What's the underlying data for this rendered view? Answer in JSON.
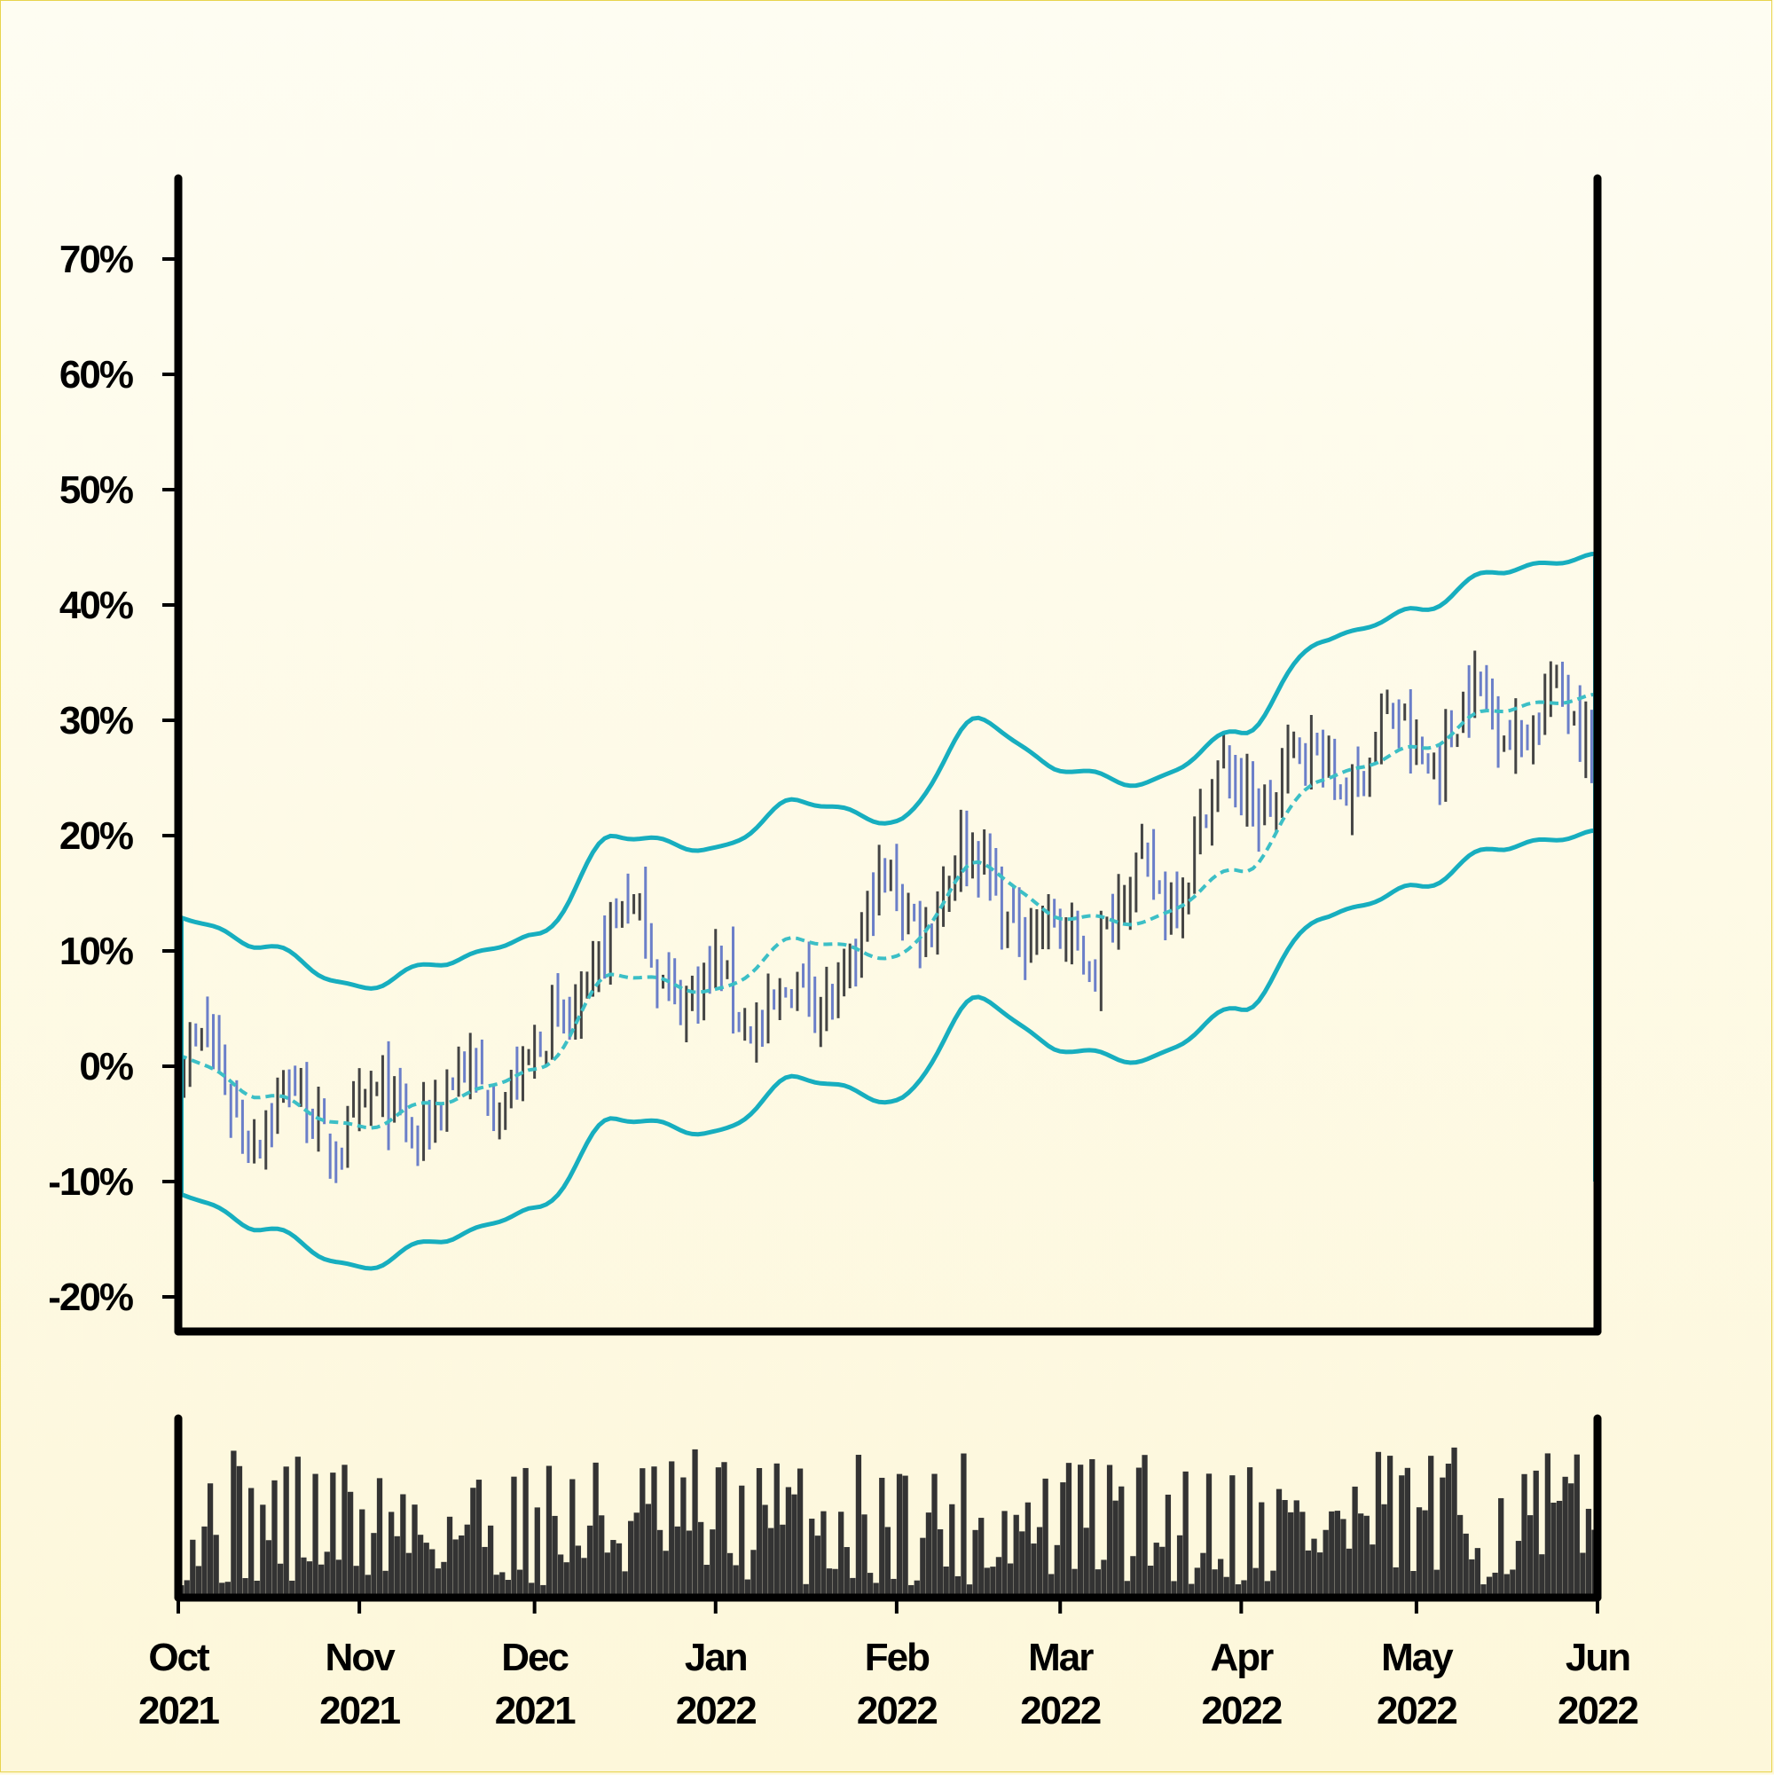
{
  "chart_data": [
    {
      "type": "ohlc",
      "title": "",
      "xlabel": "",
      "ylabel": "",
      "ylim": [
        -23,
        77
      ],
      "y_ticks": [
        -20,
        -10,
        0,
        10,
        20,
        30,
        40,
        50,
        60,
        70
      ],
      "y_tick_labels": [
        "-20%",
        "-10%",
        "0%",
        "10%",
        "20%",
        "30%",
        "40%",
        "50%",
        "60%",
        "70%"
      ],
      "x_range": [
        "2021-10-01",
        "2022-06-01"
      ],
      "up_color": "#5b6b6b",
      "down_color": "#6d7fc4",
      "bar_palette": [
        "#444444",
        "#6b7fc9"
      ],
      "series": [
        {
          "name": "",
          "kind": "price-close",
          "x": [
            "2021-10-01",
            "2021-10-15",
            "2021-11-01",
            "2021-11-15",
            "2021-12-01",
            "2021-12-15",
            "2022-01-01",
            "2022-01-15",
            "2022-02-01",
            "2022-02-15",
            "2022-03-01",
            "2022-03-15",
            "2022-04-01",
            "2022-04-15",
            "2022-05-01",
            "2022-05-15",
            "2022-06-01"
          ],
          "values": [
            1,
            -4,
            -5,
            -3,
            0,
            12,
            6,
            5,
            14,
            17,
            10,
            15,
            24,
            26,
            28,
            31,
            30
          ]
        },
        {
          "name": "",
          "kind": "moving-average",
          "x": [
            "2021-10-01",
            "2021-10-15",
            "2021-11-01",
            "2021-11-15",
            "2021-12-01",
            "2021-12-15",
            "2022-01-01",
            "2022-01-15",
            "2022-02-01",
            "2022-02-15",
            "2022-03-01",
            "2022-03-15",
            "2022-04-01",
            "2022-04-15",
            "2022-05-01",
            "2022-05-15",
            "2022-06-01"
          ],
          "values": [
            1,
            -2.5,
            -5.3,
            -3,
            -0.5,
            8,
            6.5,
            11,
            9.5,
            17.5,
            13,
            12.5,
            17,
            25,
            27.5,
            31,
            32
          ]
        },
        {
          "name": "",
          "kind": "upper-band",
          "x": [
            "2021-10-01",
            "2021-10-15",
            "2021-11-01",
            "2021-11-15",
            "2021-12-01",
            "2021-12-15",
            "2022-01-01",
            "2022-01-15",
            "2022-02-01",
            "2022-02-15",
            "2022-03-01",
            "2022-03-15",
            "2022-04-01",
            "2022-04-15",
            "2022-05-01",
            "2022-05-15",
            "2022-06-01"
          ],
          "values": [
            13,
            10.5,
            6.8,
            9,
            11.2,
            20,
            18.8,
            23,
            21.2,
            30,
            25.8,
            24.5,
            29,
            37,
            39.5,
            43,
            44.2
          ]
        },
        {
          "name": "",
          "kind": "lower-band",
          "x": [
            "2021-10-01",
            "2021-10-15",
            "2021-11-01",
            "2021-11-15",
            "2021-12-01",
            "2021-12-15",
            "2022-01-01",
            "2022-01-15",
            "2022-02-01",
            "2022-02-15",
            "2022-03-01",
            "2022-03-15",
            "2022-04-01",
            "2022-04-15",
            "2022-05-01",
            "2022-05-15",
            "2022-06-01"
          ],
          "values": [
            -11,
            -14,
            -17.5,
            -15,
            -12.5,
            -4.5,
            -5.8,
            -1,
            -3,
            5.8,
            1.5,
            0.5,
            5,
            13,
            15.5,
            19,
            20.2
          ]
        }
      ],
      "band_color": "#17aebf",
      "average_color": "#3cbfc6"
    },
    {
      "type": "bar",
      "title": "",
      "xlabel": "",
      "ylabel": "",
      "x_range": [
        "2021-10-01",
        "2022-06-01"
      ],
      "x_tick_labels": [
        {
          "month": "Oct",
          "year": "2021"
        },
        {
          "month": "Nov",
          "year": "2021"
        },
        {
          "month": "Dec",
          "year": "2021"
        },
        {
          "month": "Jan",
          "year": "2022"
        },
        {
          "month": "Feb",
          "year": "2022"
        },
        {
          "month": "Mar",
          "year": "2022"
        },
        {
          "month": "Apr",
          "year": "2022"
        },
        {
          "month": "May",
          "year": "2022"
        },
        {
          "month": "Jun",
          "year": "2022"
        }
      ],
      "bar_color": "#333333",
      "values_note_scale": [
        0,
        1
      ]
    }
  ]
}
